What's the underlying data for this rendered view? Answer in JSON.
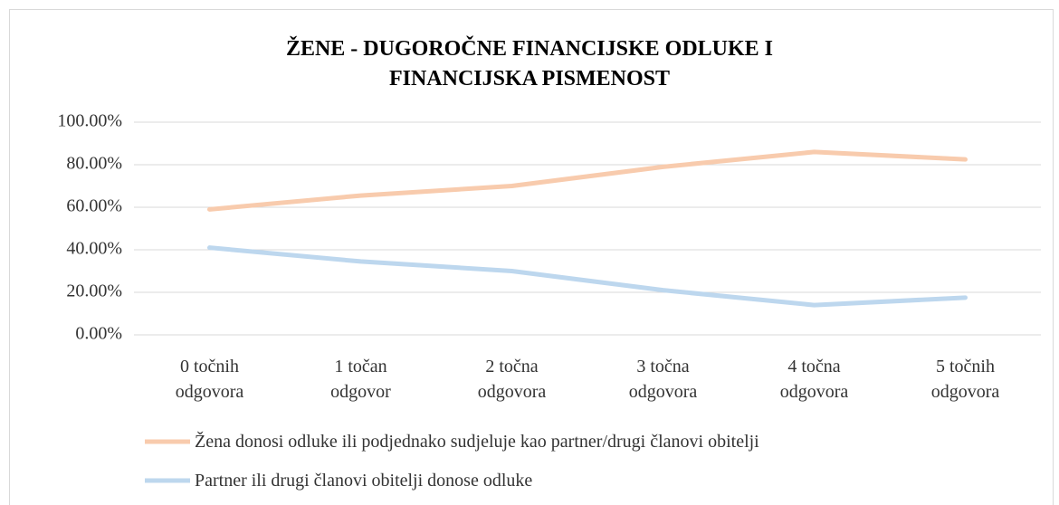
{
  "chart_data": {
    "type": "line",
    "title": "ŽENE - DUGOROČNE FINANCIJSKE ODLUKE I\nFINANCIJSKA PISMENOST",
    "categories": [
      "0 točnih\nodgovora",
      "1 točan\nodgovor",
      "2 točna\nodgovora",
      "3 točna\nodgovora",
      "4 točna\nodgovora",
      "5 točnih\nodgovora"
    ],
    "series": [
      {
        "name": "Žena donosi odluke ili podjednako sudjeluje kao partner/drugi članovi obitelji",
        "color": "#f8cbad",
        "values": [
          59,
          65.5,
          70,
          79,
          86,
          82.5
        ]
      },
      {
        "name": "Partner ili drugi članovi obitelji donose odluke",
        "color": "#bdd7ee",
        "values": [
          41,
          34.5,
          30,
          21,
          14,
          17.5
        ]
      }
    ],
    "ylim": [
      0,
      100
    ],
    "yticks": [
      {
        "value": 0,
        "label": "0.00%"
      },
      {
        "value": 20,
        "label": "20.00%"
      },
      {
        "value": 40,
        "label": "40.00%"
      },
      {
        "value": 60,
        "label": "60.00%"
      },
      {
        "value": 80,
        "label": "80.00%"
      },
      {
        "value": 100,
        "label": "100.00%"
      }
    ],
    "grid": true,
    "legend": "bottom"
  }
}
